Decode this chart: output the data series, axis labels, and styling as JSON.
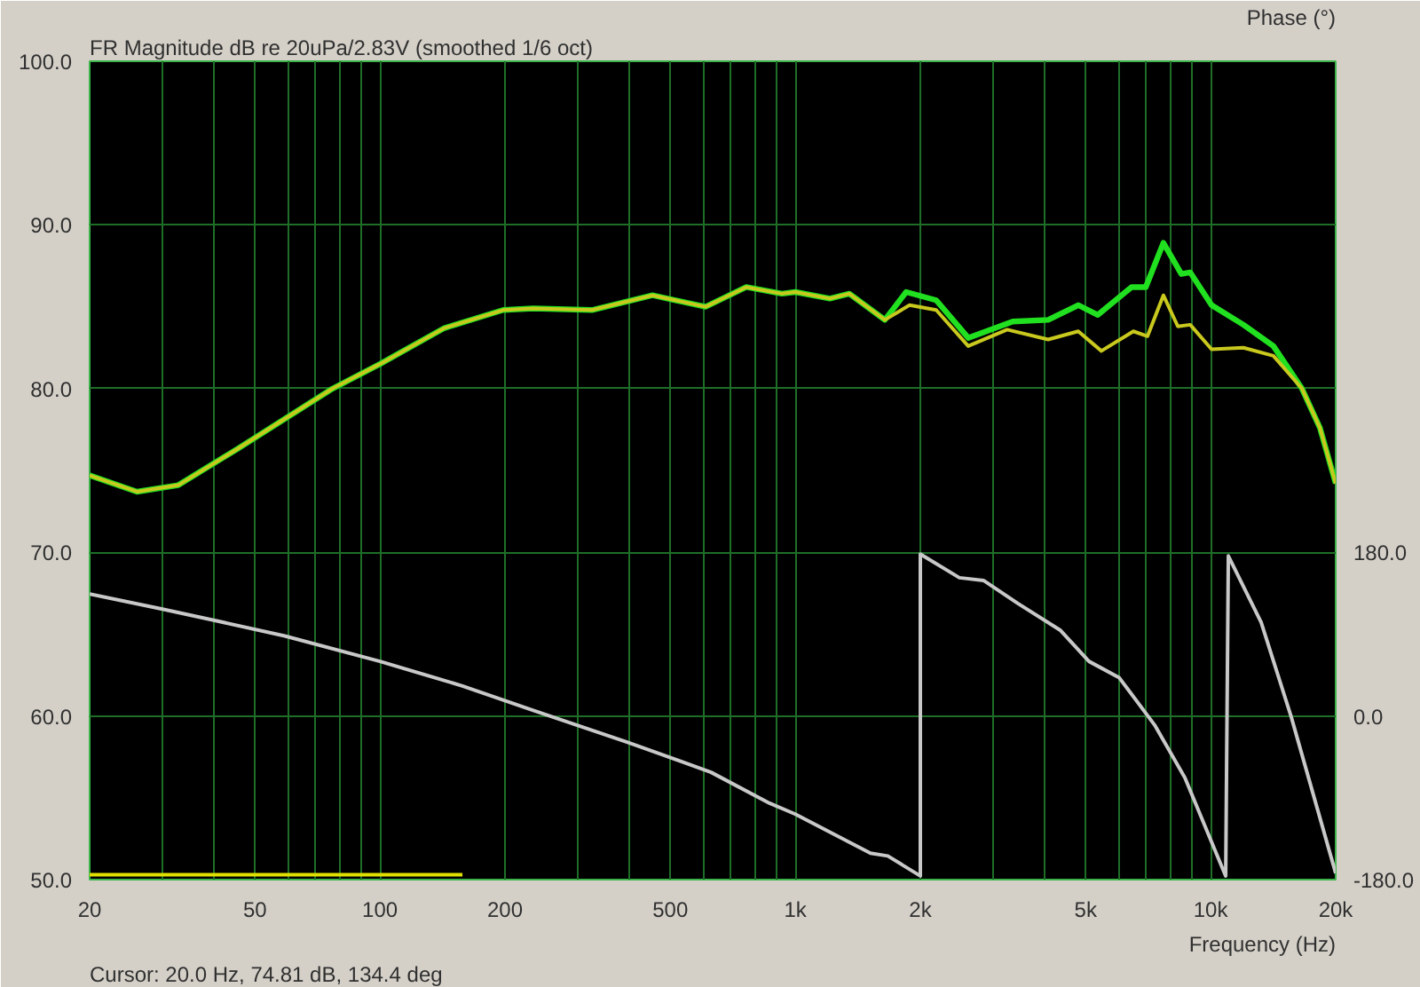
{
  "chart_data": {
    "type": "line",
    "title": "FR Magnitude dB re 20uPa/2.83V (smoothed 1/6 oct)",
    "xlabel": "Frequency (Hz)",
    "y2label": "Phase (°)",
    "annotations": [
      "Cursor: 20.0 Hz, 74.81 dB, 134.4 deg"
    ],
    "log": "x",
    "grid": true,
    "xlim": [
      20,
      20000
    ],
    "xticks": [
      20,
      {
        "value": 30,
        "label": null
      },
      {
        "value": 40,
        "label": null
      },
      50,
      {
        "value": 60,
        "label": null
      },
      {
        "value": 70,
        "label": null
      },
      {
        "value": 80,
        "label": null
      },
      {
        "value": 90,
        "label": null
      },
      100,
      200,
      {
        "value": 300,
        "label": null
      },
      {
        "value": 400,
        "label": null
      },
      500,
      {
        "value": 600,
        "label": null
      },
      {
        "value": 700,
        "label": null
      },
      {
        "value": 800,
        "label": null
      },
      {
        "value": 900,
        "label": null
      },
      {
        "value": 1000,
        "label": "1k"
      },
      {
        "value": 2000,
        "label": "2k"
      },
      {
        "value": 3000,
        "label": null
      },
      {
        "value": 4000,
        "label": null
      },
      {
        "value": 5000,
        "label": "5k"
      },
      {
        "value": 6000,
        "label": null
      },
      {
        "value": 7000,
        "label": null
      },
      {
        "value": 8000,
        "label": null
      },
      {
        "value": 9000,
        "label": null
      },
      {
        "value": 10000,
        "label": "10k"
      },
      {
        "value": 20000,
        "label": "20k"
      }
    ],
    "ylim": [
      50,
      100
    ],
    "yticks": [
      {
        "value": 50,
        "label": "50.0"
      },
      {
        "value": 60,
        "label": "60.0"
      },
      {
        "value": 70,
        "label": "70.0"
      },
      {
        "value": 80,
        "label": "80.0"
      },
      {
        "value": 90,
        "label": "90.0"
      },
      {
        "value": 100,
        "label": "100.0"
      }
    ],
    "y2lim": [
      -180,
      720
    ],
    "y2ticks": [
      {
        "value": -180,
        "label": "-180.0"
      },
      {
        "value": 0,
        "label": "0.0"
      },
      {
        "value": 180,
        "label": "180.0"
      }
    ],
    "series": [
      {
        "color": "#20e020",
        "x": [
          20,
          26,
          32.7,
          45.3,
          76.9,
          100,
          143,
          198,
          234,
          324,
          453,
          608,
          762,
          929,
          1000,
          1211,
          1349,
          1643,
          1849,
          2184,
          2608,
          3338,
          4063,
          4800,
          5350,
          6450,
          6980,
          7695,
          8500,
          8930,
          10050,
          11990,
          14160,
          16590,
          18330,
          20000
        ],
        "values": [
          74.7,
          73.7,
          74.1,
          76.3,
          80.0,
          81.5,
          83.7,
          84.8,
          84.9,
          84.8,
          85.7,
          85.0,
          86.2,
          85.8,
          85.9,
          85.5,
          85.8,
          84.2,
          85.9,
          85.4,
          83.1,
          84.1,
          84.2,
          85.1,
          84.5,
          86.2,
          86.2,
          88.9,
          87.0,
          87.1,
          85.1,
          83.9,
          82.6,
          80.0,
          77.6,
          74.2
        ]
      },
      {
        "color": "#c8c81e",
        "x": [
          20,
          26,
          32.7,
          45.3,
          76.9,
          100,
          143,
          198,
          234,
          324,
          453,
          608,
          762,
          929,
          1000,
          1211,
          1349,
          1643,
          1884,
          2184,
          2608,
          3237,
          4063,
          4800,
          5456,
          6515,
          7047,
          7695,
          8337,
          8930,
          10050,
          11990,
          14160,
          16590,
          18330,
          20000
        ],
        "values": [
          74.7,
          73.7,
          74.1,
          76.3,
          80.0,
          81.5,
          83.7,
          84.8,
          84.9,
          84.8,
          85.7,
          85.0,
          86.2,
          85.8,
          85.9,
          85.5,
          85.8,
          84.2,
          85.1,
          84.8,
          82.6,
          83.6,
          83.0,
          83.5,
          82.3,
          83.5,
          83.2,
          85.7,
          83.8,
          83.9,
          82.4,
          82.5,
          82.0,
          80.0,
          77.6,
          74.2
        ]
      },
      {
        "color": "#c8c8c8",
        "axis": "y2",
        "x": [
          20,
          29.6,
          40,
          59,
          100,
          158,
          234,
          395,
          627,
          867,
          1000,
          1517,
          1670,
          2000,
          2000,
          2483,
          2838,
          3428,
          4352,
          5094,
          6025,
          7330,
          8670,
          10870,
          11030,
          13230,
          15630,
          20000
        ],
        "values": [
          134,
          118,
          105,
          88,
          60,
          33,
          6,
          -29,
          -62,
          -96,
          -108,
          -151,
          -154,
          -176,
          178,
          152,
          149,
          124,
          94,
          60,
          42,
          -10,
          -68,
          -176,
          176,
          103,
          -1,
          -173
        ]
      },
      {
        "color": "#e0e000",
        "x": [
          20,
          158
        ],
        "values": [
          50.3,
          50.3
        ]
      }
    ]
  }
}
